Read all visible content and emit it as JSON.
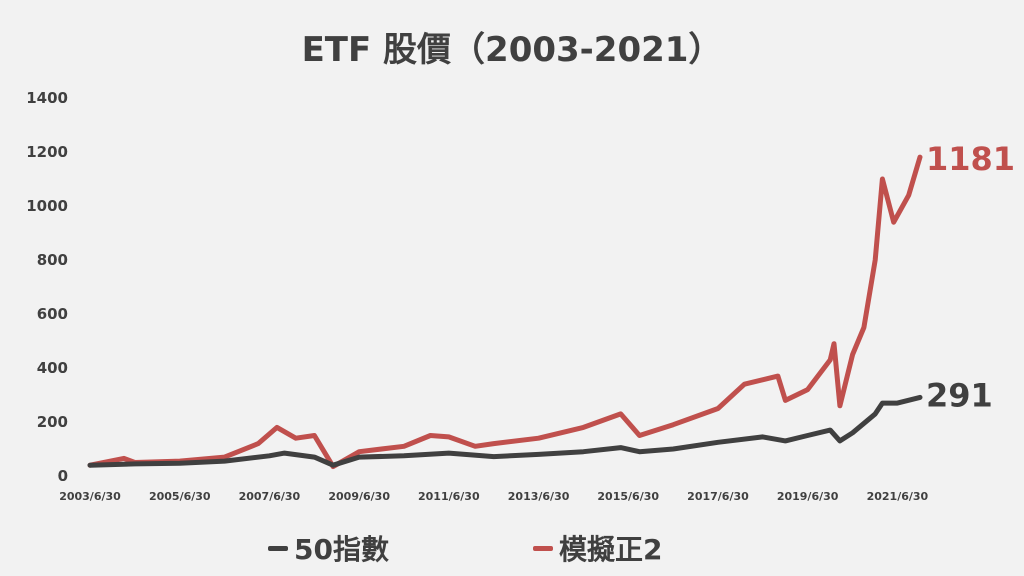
{
  "chart_data": {
    "type": "line",
    "title": "ETF 股價（2003-2021）",
    "xlabel": "",
    "ylabel": "",
    "ylim": [
      0,
      1400
    ],
    "y_ticks": [
      0,
      200,
      400,
      600,
      800,
      1000,
      1200,
      1400
    ],
    "x_tick_labels": [
      "2003/6/30",
      "2005/6/30",
      "2007/6/30",
      "2009/6/30",
      "2011/6/30",
      "2013/6/30",
      "2015/6/30",
      "2017/6/30",
      "2019/6/30",
      "2021/6/30"
    ],
    "grid": false,
    "legend_position": "bottom",
    "series": [
      {
        "name": "50指數",
        "color": "#404040",
        "end_label": "291",
        "points": [
          [
            "2003-06-30",
            40
          ],
          [
            "2004-06-30",
            45
          ],
          [
            "2005-06-30",
            47
          ],
          [
            "2006-06-30",
            55
          ],
          [
            "2007-06-30",
            75
          ],
          [
            "2007-10-31",
            85
          ],
          [
            "2008-06-30",
            70
          ],
          [
            "2008-11-30",
            40
          ],
          [
            "2009-06-30",
            70
          ],
          [
            "2010-06-30",
            75
          ],
          [
            "2011-06-30",
            85
          ],
          [
            "2012-06-30",
            72
          ],
          [
            "2013-06-30",
            80
          ],
          [
            "2014-06-30",
            90
          ],
          [
            "2015-04-30",
            105
          ],
          [
            "2015-09-30",
            90
          ],
          [
            "2016-06-30",
            100
          ],
          [
            "2017-06-30",
            125
          ],
          [
            "2018-06-30",
            145
          ],
          [
            "2018-12-31",
            130
          ],
          [
            "2019-06-30",
            150
          ],
          [
            "2019-12-31",
            170
          ],
          [
            "2020-03-19",
            130
          ],
          [
            "2020-06-30",
            160
          ],
          [
            "2020-12-31",
            230
          ],
          [
            "2021-02-28",
            270
          ],
          [
            "2021-06-30",
            270
          ],
          [
            "2021-12-31",
            291
          ]
        ]
      },
      {
        "name": "模擬正2",
        "color": "#c0504d",
        "end_label": "1181",
        "points": [
          [
            "2003-06-30",
            40
          ],
          [
            "2004-03-31",
            65
          ],
          [
            "2004-06-30",
            50
          ],
          [
            "2005-06-30",
            55
          ],
          [
            "2006-06-30",
            70
          ],
          [
            "2007-03-31",
            120
          ],
          [
            "2007-08-31",
            180
          ],
          [
            "2008-01-31",
            140
          ],
          [
            "2008-06-30",
            150
          ],
          [
            "2008-11-30",
            35
          ],
          [
            "2009-06-30",
            90
          ],
          [
            "2010-06-30",
            110
          ],
          [
            "2011-01-31",
            150
          ],
          [
            "2011-06-30",
            145
          ],
          [
            "2012-01-31",
            110
          ],
          [
            "2012-06-30",
            120
          ],
          [
            "2013-06-30",
            140
          ],
          [
            "2014-06-30",
            180
          ],
          [
            "2015-04-30",
            230
          ],
          [
            "2015-09-30",
            150
          ],
          [
            "2016-06-30",
            190
          ],
          [
            "2017-06-30",
            250
          ],
          [
            "2018-01-31",
            340
          ],
          [
            "2018-10-31",
            370
          ],
          [
            "2018-12-31",
            280
          ],
          [
            "2019-06-30",
            320
          ],
          [
            "2019-12-31",
            430
          ],
          [
            "2020-01-31",
            490
          ],
          [
            "2020-03-19",
            260
          ],
          [
            "2020-06-30",
            450
          ],
          [
            "2020-09-30",
            550
          ],
          [
            "2020-12-31",
            800
          ],
          [
            "2021-02-28",
            1100
          ],
          [
            "2021-05-31",
            940
          ],
          [
            "2021-09-30",
            1040
          ],
          [
            "2021-12-31",
            1181
          ]
        ]
      }
    ]
  }
}
